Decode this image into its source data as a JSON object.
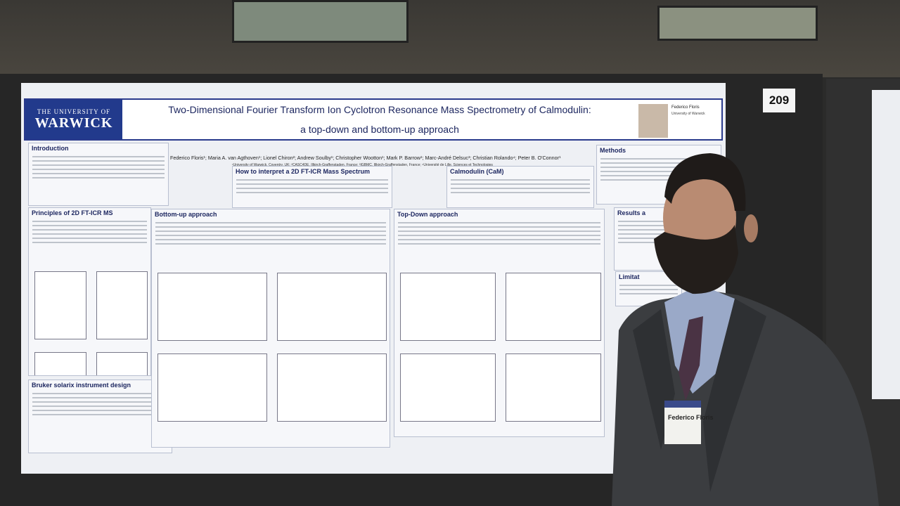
{
  "booth_number": "209",
  "poster": {
    "logo": {
      "line1": "THE UNIVERSITY OF",
      "line2": "WARWICK"
    },
    "title": [
      "Two-Dimensional Fourier Transform Ion Cyclotron Resonance Mass Spectrometry of Calmodulin:",
      "a top-down and bottom-up approach"
    ],
    "authors": "Federico Floris¹; Maria A. van Agthoven¹; Lionel Chiron²; Andrew Soulby¹; Christopher Wootton¹; Mark P. Barrow¹; Marc-André Delsuc³; Christian Rolando⁴; Peter B. O'Connor¹",
    "affiliations": "¹University of Warwick, Coventry, UK; ²CASC4DE, Illkirch-Graffenstaden, France; ³IGBMC, Illkirch-Graffenstaden, France; ⁴Université de Lille, Sciences et Technologies",
    "contact": {
      "name": "Federico Floris",
      "org": "University of Warwick"
    },
    "sections": [
      "Introduction",
      "Principles of 2D FT-ICR MS",
      "Bruker solarix instrument design",
      "How to interpret a 2D FT-ICR Mass Spectrum",
      "Bottom-up approach",
      "Top-Down approach",
      "Calmodulin (CaM)",
      "Methods",
      "Results a",
      "Limitat"
    ]
  },
  "badge": {
    "name": "Federico Floris"
  }
}
